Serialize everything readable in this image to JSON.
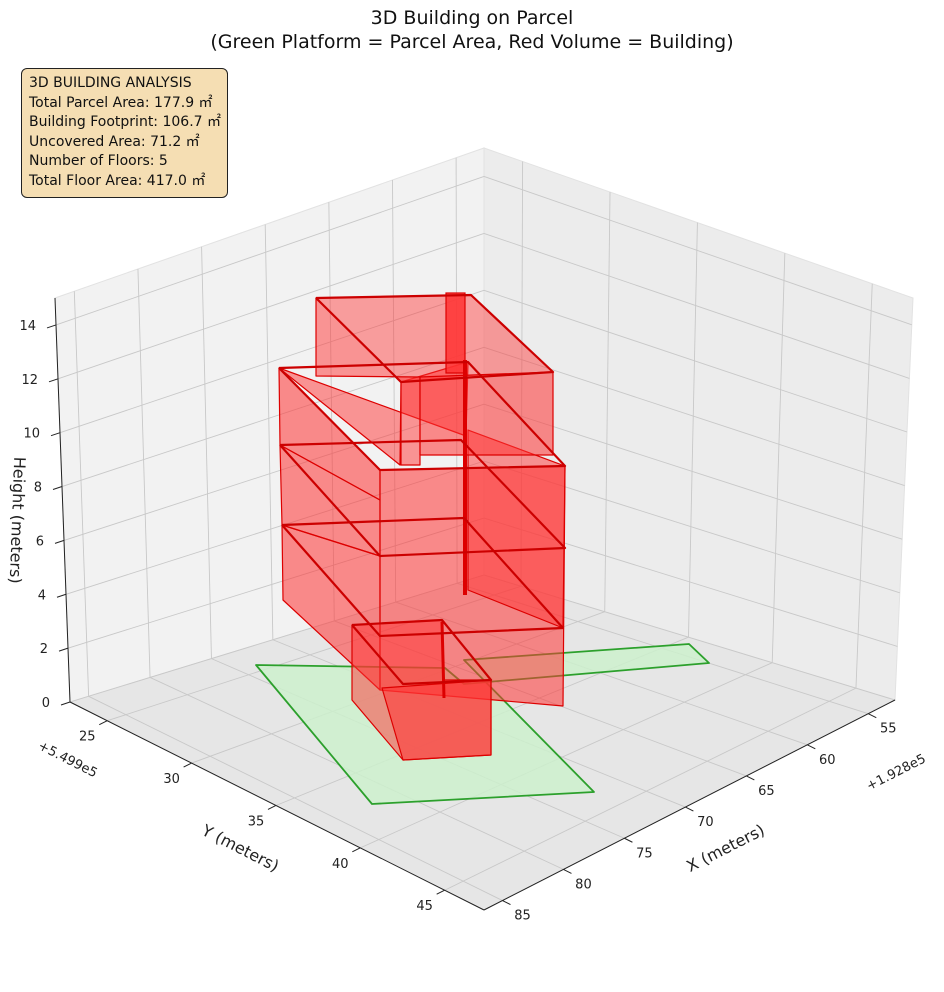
{
  "header": {
    "title_line1": "3D Building on Parcel",
    "title_line2": "(Green Platform = Parcel Area, Red Volume = Building)"
  },
  "info_box": {
    "heading": "3D BUILDING ANALYSIS",
    "lines": [
      "Total Parcel Area: 177.9 ㎡",
      "Building Footprint: 106.7 ㎡",
      "Uncovered Area: 71.2 ㎡",
      "Number of Floors: 5",
      "Total Floor Area: 417.0 ㎡"
    ]
  },
  "chart_data": {
    "type": "3d-polygon",
    "x_axis": {
      "label": "X (meters)",
      "offset_text": "+1.928e5",
      "ticks": [
        "55",
        "60",
        "65",
        "70",
        "75",
        "80",
        "85"
      ]
    },
    "y_axis": {
      "label": "Y (meters)",
      "offset_text": "+5.499e5",
      "ticks": [
        "25",
        "30",
        "35",
        "40",
        "45"
      ]
    },
    "z_axis": {
      "label": "Height (meters)",
      "ticks": [
        "0",
        "2",
        "4",
        "6",
        "8",
        "10",
        "12",
        "14"
      ]
    },
    "series": [
      {
        "name": "Parcel Area",
        "role": "green platform",
        "color": "#2ca02c",
        "fill": "#ccf0cc"
      },
      {
        "name": "Building",
        "role": "red volume",
        "color": "#dd0000",
        "fill": "#ff3333"
      }
    ],
    "floors": [
      {
        "floor": 1,
        "z_range": [
          0,
          3
        ]
      },
      {
        "floor": 2,
        "z_range": [
          3,
          6
        ]
      },
      {
        "floor": 3,
        "z_range": [
          6,
          9
        ]
      },
      {
        "floor": 4,
        "z_range": [
          9,
          12
        ]
      },
      {
        "floor": 5,
        "z_range": [
          12,
          15
        ]
      }
    ],
    "grid": true
  }
}
